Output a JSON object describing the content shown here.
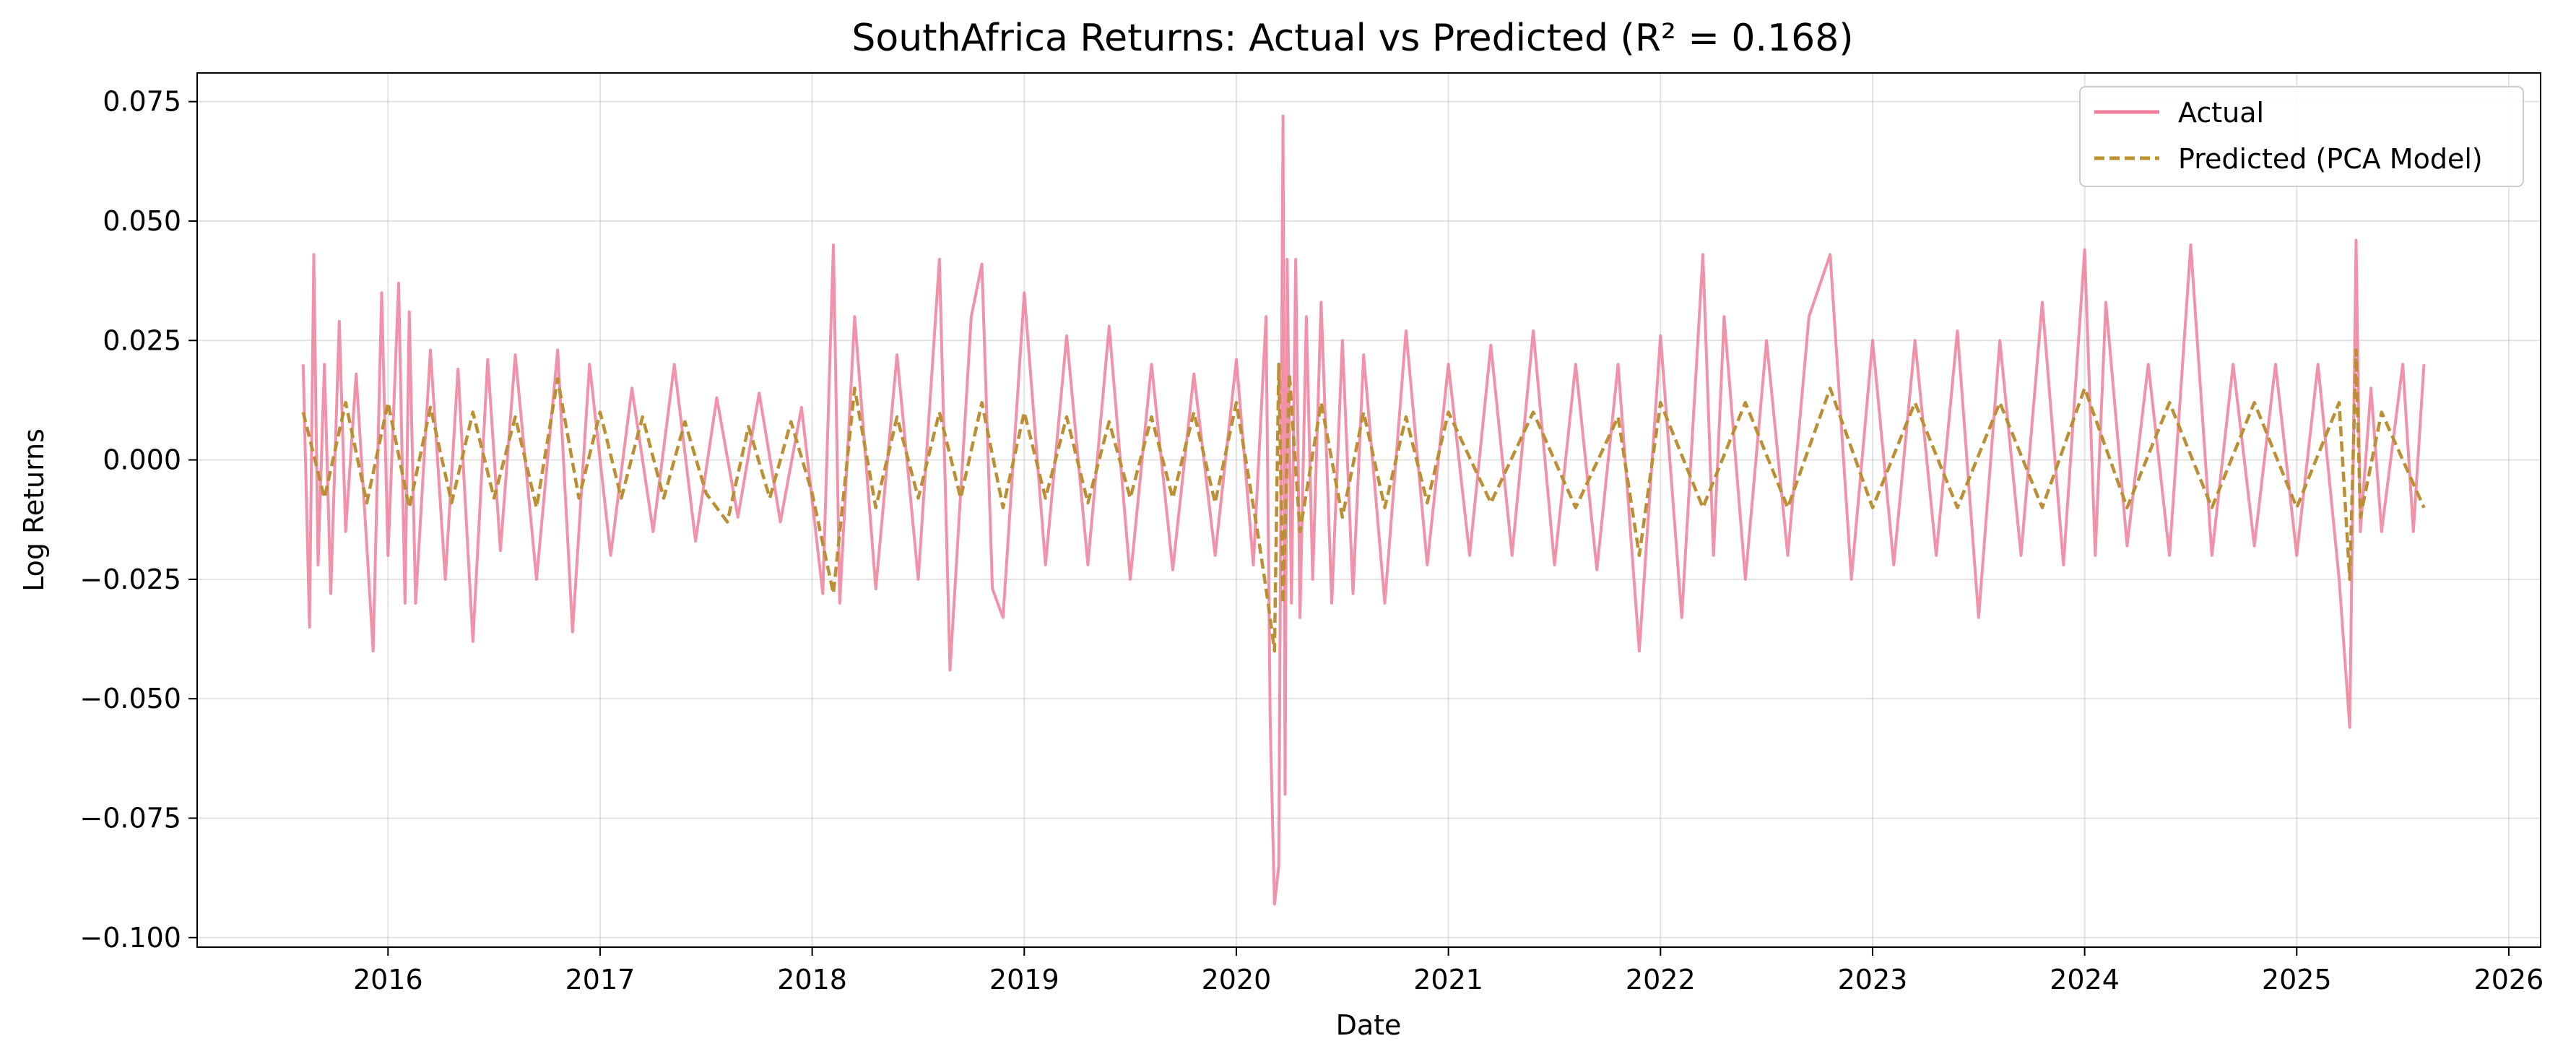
{
  "chart_data": {
    "type": "line",
    "title": "SouthAfrica Returns: Actual vs Predicted (R² = 0.168)",
    "xlabel": "Date",
    "ylabel": "Log Returns",
    "xlim": [
      2015.1,
      2026.15
    ],
    "ylim": [
      -0.102,
      0.081
    ],
    "x_ticks": [
      2016,
      2017,
      2018,
      2019,
      2020,
      2021,
      2022,
      2023,
      2024,
      2025,
      2026
    ],
    "x_tick_labels": [
      "2016",
      "2017",
      "2018",
      "2019",
      "2020",
      "2021",
      "2022",
      "2023",
      "2024",
      "2025",
      "2026"
    ],
    "y_ticks": [
      -0.1,
      -0.075,
      -0.05,
      -0.025,
      0.0,
      0.025,
      0.05,
      0.075
    ],
    "y_tick_labels": [
      "−0.100",
      "−0.075",
      "−0.050",
      "−0.025",
      "0.000",
      "0.025",
      "0.050",
      "0.075"
    ],
    "grid": true,
    "legend_position": "top-right",
    "series": [
      {
        "name": "Actual",
        "color": "#f07f9b",
        "style": "solid",
        "x": [
          2015.6,
          2015.63,
          2015.65,
          2015.67,
          2015.7,
          2015.73,
          2015.77,
          2015.8,
          2015.85,
          2015.9,
          2015.93,
          2015.97,
          2016.0,
          2016.05,
          2016.08,
          2016.1,
          2016.13,
          2016.2,
          2016.27,
          2016.33,
          2016.4,
          2016.47,
          2016.53,
          2016.6,
          2016.7,
          2016.8,
          2016.87,
          2016.95,
          2017.05,
          2017.15,
          2017.25,
          2017.35,
          2017.45,
          2017.55,
          2017.65,
          2017.75,
          2017.85,
          2017.95,
          2018.05,
          2018.1,
          2018.13,
          2018.2,
          2018.3,
          2018.4,
          2018.5,
          2018.6,
          2018.65,
          2018.75,
          2018.8,
          2018.85,
          2018.9,
          2019.0,
          2019.1,
          2019.2,
          2019.3,
          2019.4,
          2019.5,
          2019.6,
          2019.7,
          2019.8,
          2019.9,
          2020.0,
          2020.08,
          2020.14,
          2020.16,
          2020.18,
          2020.2,
          2020.22,
          2020.23,
          2020.24,
          2020.26,
          2020.28,
          2020.3,
          2020.33,
          2020.36,
          2020.4,
          2020.45,
          2020.5,
          2020.55,
          2020.6,
          2020.7,
          2020.8,
          2020.9,
          2021.0,
          2021.1,
          2021.2,
          2021.3,
          2021.4,
          2021.5,
          2021.6,
          2021.7,
          2021.8,
          2021.9,
          2022.0,
          2022.1,
          2022.2,
          2022.25,
          2022.3,
          2022.4,
          2022.5,
          2022.6,
          2022.7,
          2022.8,
          2022.9,
          2023.0,
          2023.1,
          2023.2,
          2023.3,
          2023.4,
          2023.5,
          2023.6,
          2023.7,
          2023.8,
          2023.9,
          2024.0,
          2024.05,
          2024.1,
          2024.2,
          2024.3,
          2024.4,
          2024.5,
          2024.6,
          2024.7,
          2024.8,
          2024.9,
          2025.0,
          2025.1,
          2025.2,
          2025.25,
          2025.28,
          2025.3,
          2025.35,
          2025.4,
          2025.5,
          2025.55,
          2025.6
        ],
        "values": [
          0.02,
          -0.035,
          0.043,
          -0.022,
          0.02,
          -0.028,
          0.029,
          -0.015,
          0.018,
          -0.018,
          -0.04,
          0.035,
          -0.02,
          0.037,
          -0.03,
          0.031,
          -0.03,
          0.023,
          -0.025,
          0.019,
          -0.038,
          0.021,
          -0.019,
          0.022,
          -0.025,
          0.023,
          -0.036,
          0.02,
          -0.02,
          0.015,
          -0.015,
          0.02,
          -0.017,
          0.013,
          -0.012,
          0.014,
          -0.013,
          0.011,
          -0.028,
          0.045,
          -0.03,
          0.03,
          -0.027,
          0.022,
          -0.025,
          0.042,
          -0.044,
          0.03,
          0.041,
          -0.027,
          -0.033,
          0.035,
          -0.022,
          0.026,
          -0.022,
          0.028,
          -0.025,
          0.02,
          -0.023,
          0.018,
          -0.02,
          0.021,
          -0.022,
          0.03,
          -0.055,
          -0.093,
          -0.085,
          0.072,
          -0.07,
          0.042,
          -0.03,
          0.042,
          -0.033,
          0.03,
          -0.025,
          0.033,
          -0.03,
          0.025,
          -0.028,
          0.022,
          -0.03,
          0.027,
          -0.022,
          0.02,
          -0.02,
          0.024,
          -0.02,
          0.027,
          -0.022,
          0.02,
          -0.023,
          0.02,
          -0.04,
          0.026,
          -0.033,
          0.043,
          -0.02,
          0.03,
          -0.025,
          0.025,
          -0.02,
          0.03,
          0.043,
          -0.025,
          0.025,
          -0.022,
          0.025,
          -0.02,
          0.027,
          -0.033,
          0.025,
          -0.02,
          0.033,
          -0.022,
          0.044,
          -0.02,
          0.033,
          -0.018,
          0.02,
          -0.02,
          0.045,
          -0.02,
          0.02,
          -0.018,
          0.02,
          -0.02,
          0.02,
          -0.025,
          -0.056,
          0.046,
          -0.015,
          0.015,
          -0.015,
          0.02,
          -0.015,
          0.02
        ]
      },
      {
        "name": "Predicted (PCA Model)",
        "color": "#bb9035",
        "style": "dashed",
        "x": [
          2015.6,
          2015.7,
          2015.8,
          2015.9,
          2016.0,
          2016.1,
          2016.2,
          2016.3,
          2016.4,
          2016.5,
          2016.6,
          2016.7,
          2016.8,
          2016.9,
          2017.0,
          2017.1,
          2017.2,
          2017.3,
          2017.4,
          2017.5,
          2017.6,
          2017.7,
          2017.8,
          2017.9,
          2018.0,
          2018.1,
          2018.2,
          2018.3,
          2018.4,
          2018.5,
          2018.6,
          2018.7,
          2018.8,
          2018.9,
          2019.0,
          2019.1,
          2019.2,
          2019.3,
          2019.4,
          2019.5,
          2019.6,
          2019.7,
          2019.8,
          2019.9,
          2020.0,
          2020.1,
          2020.15,
          2020.18,
          2020.2,
          2020.22,
          2020.25,
          2020.3,
          2020.4,
          2020.5,
          2020.6,
          2020.7,
          2020.8,
          2020.9,
          2021.0,
          2021.2,
          2021.4,
          2021.6,
          2021.8,
          2021.9,
          2022.0,
          2022.2,
          2022.4,
          2022.6,
          2022.8,
          2023.0,
          2023.2,
          2023.4,
          2023.6,
          2023.8,
          2024.0,
          2024.2,
          2024.4,
          2024.6,
          2024.8,
          2025.0,
          2025.2,
          2025.25,
          2025.28,
          2025.3,
          2025.4,
          2025.6
        ],
        "values": [
          0.01,
          -0.008,
          0.012,
          -0.009,
          0.012,
          -0.01,
          0.011,
          -0.009,
          0.01,
          -0.008,
          0.009,
          -0.01,
          0.017,
          -0.008,
          0.01,
          -0.008,
          0.009,
          -0.008,
          0.008,
          -0.007,
          -0.013,
          0.007,
          -0.008,
          0.008,
          -0.007,
          -0.028,
          0.015,
          -0.01,
          0.009,
          -0.008,
          0.01,
          -0.008,
          0.012,
          -0.01,
          0.01,
          -0.008,
          0.009,
          -0.009,
          0.008,
          -0.008,
          0.009,
          -0.008,
          0.01,
          -0.009,
          0.012,
          -0.015,
          -0.03,
          -0.04,
          0.02,
          -0.03,
          0.018,
          -0.015,
          0.012,
          -0.012,
          0.01,
          -0.01,
          0.009,
          -0.009,
          0.01,
          -0.009,
          0.01,
          -0.01,
          0.009,
          -0.02,
          0.012,
          -0.01,
          0.012,
          -0.01,
          0.015,
          -0.01,
          0.012,
          -0.01,
          0.012,
          -0.01,
          0.015,
          -0.01,
          0.012,
          -0.01,
          0.012,
          -0.01,
          0.012,
          -0.025,
          0.023,
          -0.012,
          0.01,
          -0.01
        ]
      }
    ]
  }
}
